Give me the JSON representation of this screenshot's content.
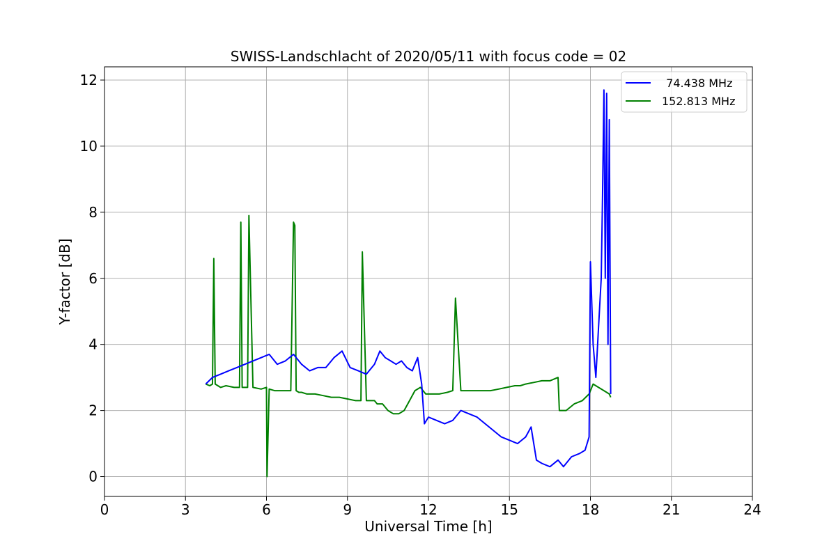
{
  "chart_data": {
    "type": "line",
    "title": "SWISS-Landschlacht of 2020/05/11 with focus code = 02",
    "xlabel": "Universal Time [h]",
    "ylabel": "Y-factor [dB]",
    "xlim": [
      0,
      24
    ],
    "ylim": [
      -0.6,
      12.4
    ],
    "xticks": [
      0,
      3,
      6,
      9,
      12,
      15,
      18,
      21,
      24
    ],
    "yticks": [
      0,
      2,
      4,
      6,
      8,
      10,
      12
    ],
    "grid": true,
    "legend_position": "top-right",
    "series": [
      {
        "name": "  74.438 MHz",
        "color": "#0000ff",
        "x": [
          3.75,
          4.0,
          4.3,
          4.6,
          4.9,
          5.2,
          5.5,
          5.8,
          6.1,
          6.4,
          6.7,
          7.0,
          7.3,
          7.6,
          7.9,
          8.2,
          8.5,
          8.8,
          9.1,
          9.4,
          9.7,
          10.0,
          10.2,
          10.4,
          10.6,
          10.8,
          11.0,
          11.2,
          11.4,
          11.6,
          11.75,
          11.85,
          12.0,
          12.3,
          12.6,
          12.9,
          13.2,
          13.5,
          13.8,
          14.1,
          14.4,
          14.7,
          15.0,
          15.3,
          15.6,
          15.8,
          16.0,
          16.2,
          16.5,
          16.8,
          17.0,
          17.3,
          17.6,
          17.8,
          17.95,
          18.0,
          18.1,
          18.2,
          18.3,
          18.4,
          18.45,
          18.5,
          18.55,
          18.6,
          18.65,
          18.7,
          18.75
        ],
        "y": [
          2.8,
          3.0,
          3.1,
          3.2,
          3.3,
          3.4,
          3.5,
          3.6,
          3.7,
          3.4,
          3.5,
          3.7,
          3.4,
          3.2,
          3.3,
          3.3,
          3.6,
          3.8,
          3.3,
          3.2,
          3.1,
          3.4,
          3.8,
          3.6,
          3.5,
          3.4,
          3.5,
          3.3,
          3.2,
          3.6,
          2.8,
          1.6,
          1.8,
          1.7,
          1.6,
          1.7,
          2.0,
          1.9,
          1.8,
          1.6,
          1.4,
          1.2,
          1.1,
          1.0,
          1.2,
          1.5,
          0.5,
          0.4,
          0.3,
          0.5,
          0.3,
          0.6,
          0.7,
          0.8,
          1.2,
          6.5,
          4.0,
          3.0,
          4.5,
          6.0,
          8.5,
          11.7,
          6.0,
          11.6,
          4.0,
          10.8,
          2.5
        ]
      },
      {
        "name": "152.813 MHz",
        "color": "#008000",
        "x": [
          3.75,
          3.9,
          4.0,
          4.05,
          4.1,
          4.3,
          4.5,
          4.8,
          5.0,
          5.05,
          5.1,
          5.15,
          5.3,
          5.35,
          5.5,
          5.8,
          6.0,
          6.02,
          6.1,
          6.3,
          6.6,
          6.9,
          7.0,
          7.05,
          7.1,
          7.2,
          7.3,
          7.5,
          7.8,
          8.1,
          8.4,
          8.7,
          9.0,
          9.3,
          9.5,
          9.55,
          9.7,
          10.0,
          10.1,
          10.3,
          10.5,
          10.7,
          10.9,
          11.1,
          11.3,
          11.5,
          11.7,
          11.9,
          12.1,
          12.4,
          12.7,
          12.9,
          13.0,
          13.2,
          13.5,
          13.8,
          14.0,
          14.3,
          14.6,
          14.9,
          15.2,
          15.4,
          15.6,
          15.9,
          16.2,
          16.5,
          16.8,
          16.85,
          17.1,
          17.4,
          17.7,
          17.95,
          18.1,
          18.3,
          18.5,
          18.7,
          18.75
        ],
        "y": [
          2.8,
          2.75,
          2.8,
          6.6,
          2.8,
          2.7,
          2.75,
          2.7,
          2.7,
          7.7,
          2.7,
          2.7,
          2.7,
          7.9,
          2.7,
          2.65,
          2.7,
          0.0,
          2.65,
          2.6,
          2.6,
          2.6,
          7.7,
          7.6,
          2.6,
          2.55,
          2.55,
          2.5,
          2.5,
          2.45,
          2.4,
          2.4,
          2.35,
          2.3,
          2.3,
          6.8,
          2.3,
          2.3,
          2.2,
          2.2,
          2.0,
          1.9,
          1.9,
          2.0,
          2.3,
          2.6,
          2.7,
          2.5,
          2.5,
          2.5,
          2.55,
          2.6,
          5.4,
          2.6,
          2.6,
          2.6,
          2.6,
          2.6,
          2.65,
          2.7,
          2.75,
          2.75,
          2.8,
          2.85,
          2.9,
          2.9,
          3.0,
          2.0,
          2.0,
          2.2,
          2.3,
          2.5,
          2.8,
          2.7,
          2.6,
          2.5,
          2.4
        ]
      }
    ]
  }
}
